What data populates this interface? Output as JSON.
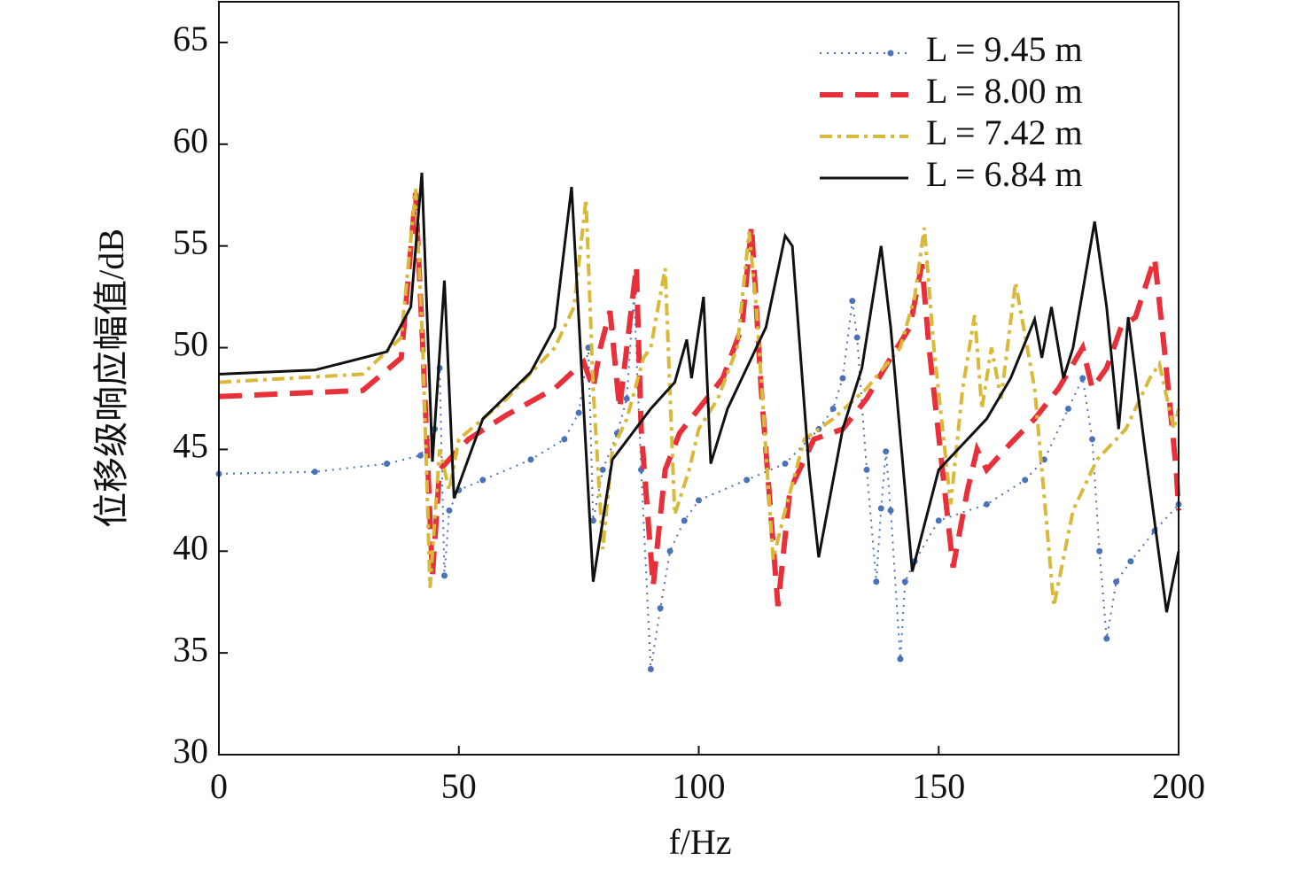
{
  "chart_data": {
    "type": "line",
    "xlabel": "f/Hz",
    "ylabel": "位移级响应幅值/dB",
    "xlim": [
      0,
      200
    ],
    "ylim": [
      30,
      67
    ],
    "xticks": [
      0,
      50,
      100,
      150,
      200
    ],
    "yticks": [
      30,
      35,
      40,
      45,
      50,
      55,
      60,
      65
    ],
    "legend": "upper right",
    "series": [
      {
        "name": "L = 9.45 m",
        "color": "#4a72b8",
        "style": "dotted-markers",
        "x": [
          0,
          20,
          35,
          42,
          45,
          46,
          47,
          48,
          50,
          55,
          65,
          72,
          75,
          77,
          78,
          80,
          83,
          85,
          86.5,
          88,
          90,
          92,
          94,
          97,
          100,
          110,
          118,
          125,
          128,
          130,
          132,
          133,
          135,
          137,
          138,
          139,
          140,
          142,
          143,
          145,
          150,
          160,
          168,
          172,
          177,
          180,
          182,
          183.5,
          185,
          187,
          190,
          195,
          200
        ],
        "values": [
          43.8,
          43.9,
          44.3,
          44.7,
          46,
          49,
          38.8,
          42,
          43,
          43.5,
          44.5,
          45.5,
          46.8,
          50,
          41.5,
          44,
          45.8,
          47.5,
          52.7,
          44,
          34.2,
          37.2,
          40,
          41.5,
          42.5,
          43.5,
          44.3,
          46,
          47,
          48.5,
          52.3,
          50.5,
          44,
          38.5,
          42.1,
          44.9,
          42,
          34.7,
          38.5,
          39.5,
          41.5,
          42.3,
          43.5,
          44.5,
          47,
          48.5,
          45.5,
          40,
          35.7,
          38.5,
          39.5,
          41,
          42.3
        ]
      },
      {
        "name": "L = 8.00 m",
        "color": "#e8303a",
        "style": "dashed",
        "x": [
          0,
          30,
          38,
          41,
          42.5,
          44.5,
          46,
          48,
          52,
          60,
          70,
          76,
          78,
          79.5,
          81.5,
          83.5,
          86,
          87,
          88,
          90.5,
          93,
          96,
          100,
          105,
          109,
          111,
          113,
          116.5,
          119,
          124,
          130,
          135,
          140,
          144,
          146.5,
          148,
          153,
          156,
          158,
          160,
          165,
          170,
          175,
          180,
          182,
          185,
          188,
          191,
          195,
          197,
          199.5,
          200
        ],
        "values": [
          47.6,
          47.9,
          49.5,
          57.6,
          50,
          38.8,
          44,
          44.5,
          45.5,
          46.7,
          48,
          49.3,
          48,
          50,
          51.8,
          47,
          52,
          54,
          46,
          38.3,
          44,
          45.8,
          47,
          48.5,
          51,
          56,
          48,
          37.3,
          43,
          45.5,
          46,
          47.5,
          49.5,
          51,
          54.1,
          50,
          39.2,
          43,
          45,
          44,
          45.3,
          46.5,
          48,
          50,
          48,
          49,
          51,
          51.5,
          54.4,
          50,
          44,
          42
        ]
      },
      {
        "name": "L = 7.42 m",
        "color": "#d9b93a",
        "style": "dashdot",
        "x": [
          0,
          30,
          38,
          41,
          42.5,
          44,
          46,
          48,
          50,
          60,
          70,
          74,
          76.5,
          78,
          80,
          82,
          85,
          88.5,
          90,
          93,
          95,
          98,
          100,
          104,
          108,
          110.5,
          112,
          115.5,
          118,
          122,
          128,
          135,
          142,
          145,
          147,
          149,
          152.5,
          155,
          157.5,
          159,
          161,
          163,
          166,
          170,
          174,
          178,
          183,
          189,
          194,
          196,
          199,
          200
        ],
        "values": [
          48.3,
          48.7,
          50.5,
          57.8,
          50,
          38.2,
          45,
          43,
          45.5,
          47.5,
          50,
          52,
          57.3,
          48,
          40.1,
          45,
          46.5,
          49.5,
          50,
          53.9,
          41.8,
          44,
          46,
          47.5,
          50,
          55.7,
          52,
          39.6,
          42,
          45.5,
          46.5,
          48,
          50,
          52.5,
          55.9,
          50,
          42.3,
          48,
          51.6,
          47,
          50,
          47.5,
          53.2,
          48,
          37.3,
          42,
          44.5,
          46,
          48.5,
          49.2,
          46,
          47
        ]
      },
      {
        "name": "L = 6.84 m",
        "color": "#111111",
        "style": "solid",
        "x": [
          0,
          20,
          35,
          40,
          42.3,
          44.5,
          47,
          49,
          55,
          65,
          70,
          73.5,
          78,
          82,
          90,
          95,
          97.5,
          98.5,
          101,
          102.5,
          106,
          110,
          114,
          118,
          119.5,
          123,
          125,
          130,
          134,
          138,
          140,
          144.5,
          150,
          160,
          165,
          170,
          171.5,
          173.5,
          176,
          178,
          182.5,
          185,
          187.5,
          189.5,
          193,
          197.5,
          200
        ],
        "values": [
          48.7,
          48.9,
          49.8,
          52,
          58.6,
          44.4,
          53.3,
          42.6,
          46.5,
          48.8,
          51,
          57.9,
          38.5,
          44.5,
          47,
          48.3,
          50.4,
          48.5,
          52.5,
          44.3,
          47,
          49,
          51,
          55.5,
          55,
          44,
          39.7,
          46,
          49,
          55,
          51,
          39,
          44,
          46.5,
          48.5,
          51.4,
          49.5,
          52,
          48.5,
          50,
          56.2,
          52,
          46,
          51.5,
          45,
          37,
          40
        ]
      }
    ]
  }
}
